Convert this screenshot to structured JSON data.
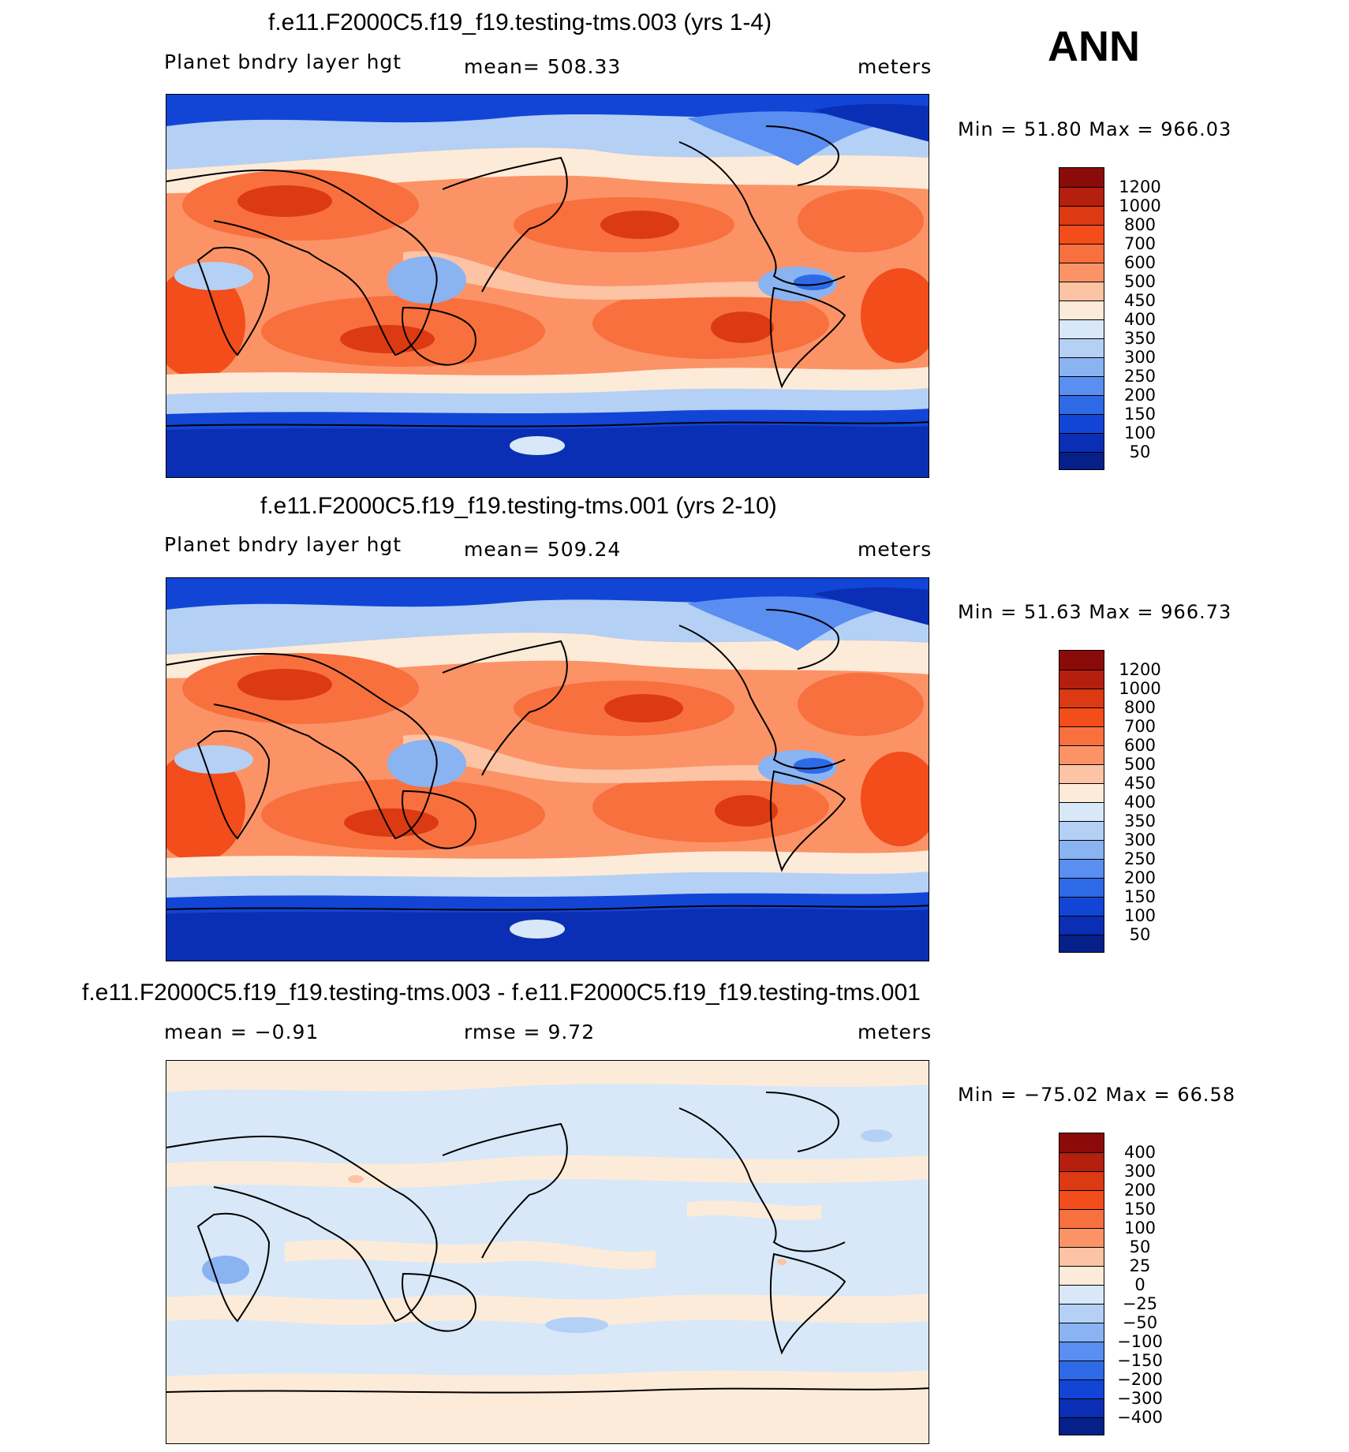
{
  "season": "ANN",
  "panels": [
    {
      "title": "f.e11.F2000C5.f19_f19.testing-tms.003 (yrs 1-4)",
      "variable": "Planet bndry layer hgt",
      "stat": "mean=  508.33",
      "units": "meters",
      "minmax": "Min =   51.80 Max = 966.03",
      "levels": [
        "1200",
        "1000",
        "800",
        "700",
        "600",
        "500",
        "450",
        "400",
        "350",
        "300",
        "250",
        "200",
        "150",
        "100",
        "50"
      ],
      "colors": [
        "#8b0a0a",
        "#b41f0e",
        "#dc3a12",
        "#f24d1a",
        "#f8703e",
        "#fb9367",
        "#fcc3a4",
        "#fdebd9",
        "#d8e8f8",
        "#b4d0f5",
        "#8ab3f2",
        "#5a8ef0",
        "#2f6ae6",
        "#1245d6",
        "#0a2fb4",
        "#06208a"
      ]
    },
    {
      "title": "f.e11.F2000C5.f19_f19.testing-tms.001 (yrs 2-10)",
      "variable": "Planet bndry layer hgt",
      "stat": "mean=  509.24",
      "units": "meters",
      "minmax": "Min =   51.63 Max = 966.73",
      "levels": [
        "1200",
        "1000",
        "800",
        "700",
        "600",
        "500",
        "450",
        "400",
        "350",
        "300",
        "250",
        "200",
        "150",
        "100",
        "50"
      ],
      "colors": [
        "#8b0a0a",
        "#b41f0e",
        "#dc3a12",
        "#f24d1a",
        "#f8703e",
        "#fb9367",
        "#fcc3a4",
        "#fdebd9",
        "#d8e8f8",
        "#b4d0f5",
        "#8ab3f2",
        "#5a8ef0",
        "#2f6ae6",
        "#1245d6",
        "#0a2fb4",
        "#06208a"
      ]
    },
    {
      "title": "f.e11.F2000C5.f19_f19.testing-tms.003 - f.e11.F2000C5.f19_f19.testing-tms.001",
      "variable": "mean =   −0.91",
      "stat": "rmse =    9.72",
      "units": "meters",
      "minmax": "Min = −75.02 Max =   66.58",
      "levels": [
        "400",
        "300",
        "200",
        "150",
        "100",
        "50",
        "25",
        "0",
        "−25",
        "−50",
        "−100",
        "−150",
        "−200",
        "−300",
        "−400"
      ],
      "colors": [
        "#8b0a0a",
        "#b41f0e",
        "#dc3a12",
        "#f24d1a",
        "#f8703e",
        "#fb9367",
        "#fcc3a4",
        "#fdebd9",
        "#d8e8f8",
        "#b4d0f5",
        "#8ab3f2",
        "#5a8ef0",
        "#2f6ae6",
        "#1245d6",
        "#0a2fb4",
        "#06208a"
      ]
    }
  ],
  "chart_data": [
    {
      "type": "heatmap",
      "title": "f.e11.F2000C5.f19_f19.testing-tms.003 (yrs 1-4)",
      "variable": "Planet bndry layer hgt",
      "units": "meters",
      "mean": 508.33,
      "min": 51.8,
      "max": 966.03,
      "levels": [
        50,
        100,
        150,
        200,
        250,
        300,
        350,
        400,
        450,
        500,
        600,
        700,
        800,
        1000,
        1200
      ]
    },
    {
      "type": "heatmap",
      "title": "f.e11.F2000C5.f19_f19.testing-tms.001 (yrs 2-10)",
      "variable": "Planet bndry layer hgt",
      "units": "meters",
      "mean": 509.24,
      "min": 51.63,
      "max": 966.73,
      "levels": [
        50,
        100,
        150,
        200,
        250,
        300,
        350,
        400,
        450,
        500,
        600,
        700,
        800,
        1000,
        1200
      ]
    },
    {
      "type": "heatmap",
      "title": "f.e11.F2000C5.f19_f19.testing-tms.003 - f.e11.F2000C5.f19_f19.testing-tms.001",
      "units": "meters",
      "mean": -0.91,
      "rmse": 9.72,
      "min": -75.02,
      "max": 66.58,
      "levels": [
        -400,
        -300,
        -200,
        -150,
        -100,
        -50,
        -25,
        0,
        25,
        50,
        100,
        150,
        200,
        300,
        400
      ]
    }
  ]
}
